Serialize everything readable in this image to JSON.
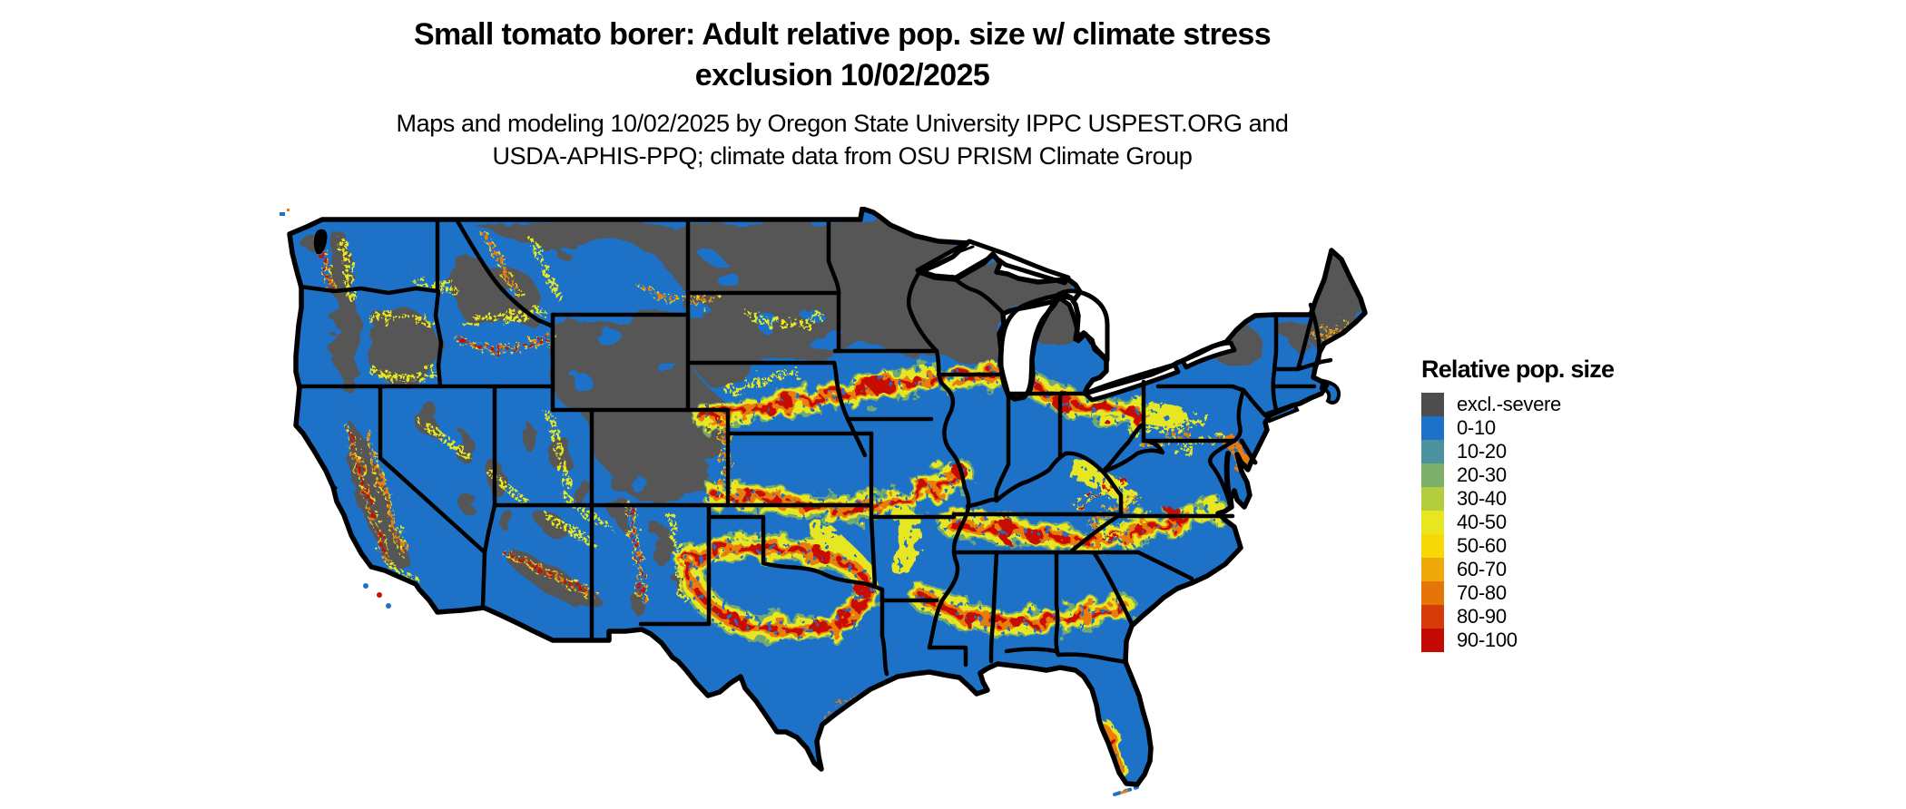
{
  "header": {
    "title_line1": "Small tomato borer: Adult relative pop. size w/ climate stress",
    "title_line2": "exclusion 10/02/2025",
    "subtitle_line1": "Maps and modeling 10/02/2025 by Oregon State University IPPC USPEST.ORG and",
    "subtitle_line2": "USDA-APHIS-PPQ; climate data from OSU PRISM Climate Group"
  },
  "legend": {
    "title": "Relative pop. size",
    "items": [
      {
        "label": "excl.-severe",
        "color": "#4d4d4d"
      },
      {
        "label": "0-10",
        "color": "#1d72c8"
      },
      {
        "label": "10-20",
        "color": "#4b91a0"
      },
      {
        "label": "20-30",
        "color": "#7cb06a"
      },
      {
        "label": "30-40",
        "color": "#b4cd3f"
      },
      {
        "label": "40-50",
        "color": "#e7e621"
      },
      {
        "label": "50-60",
        "color": "#f5d805"
      },
      {
        "label": "60-70",
        "color": "#efa80a"
      },
      {
        "label": "70-80",
        "color": "#e37509"
      },
      {
        "label": "80-90",
        "color": "#d63c08"
      },
      {
        "label": "90-100",
        "color": "#c40a03"
      }
    ]
  },
  "map": {
    "colors": {
      "water_background": "#ffffff",
      "base_fill": "#1d72c8",
      "exclusion_fill": "#575757",
      "fringe_green": "#7cb06a",
      "hot_yellow": "#e7e621",
      "hot_gold": "#f5d805",
      "hot_orange": "#e87b0a",
      "hot_red": "#c81003",
      "state_border": "#000000"
    }
  }
}
